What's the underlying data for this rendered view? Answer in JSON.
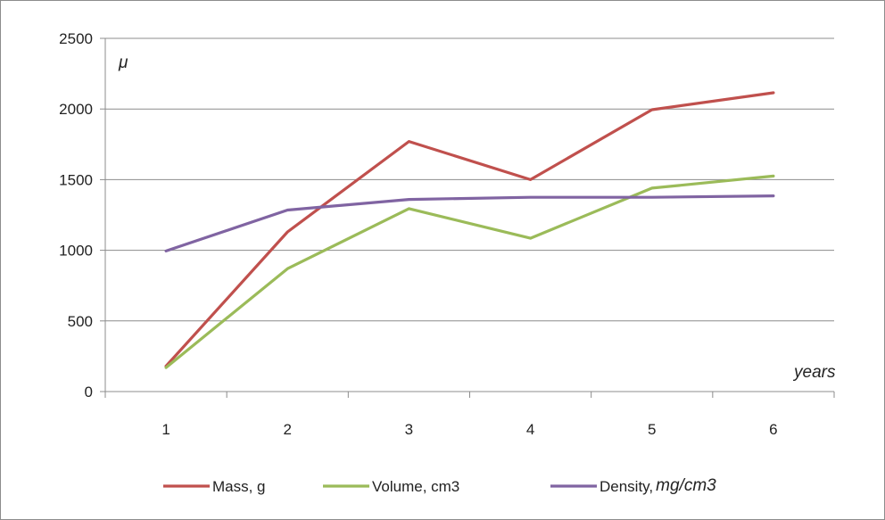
{
  "chart_data": {
    "type": "line",
    "title": "",
    "xlabel": "years",
    "ylabel": "μ",
    "x": [
      1,
      2,
      3,
      4,
      5,
      6
    ],
    "ylim": [
      0,
      2500
    ],
    "yticks": [
      0,
      500,
      1000,
      1500,
      2000,
      2500
    ],
    "grid": true,
    "legend_position": "bottom",
    "series": [
      {
        "name": "Mass, g",
        "color": "#c0504d",
        "values": [
          180,
          1130,
          1770,
          1500,
          1995,
          2115
        ]
      },
      {
        "name": "Volume, cm3",
        "color": "#9bbb59",
        "values": [
          170,
          870,
          1295,
          1085,
          1440,
          1525
        ]
      },
      {
        "name": "Density,",
        "unit": "mg/cm3",
        "color": "#8064a2",
        "values": [
          995,
          1285,
          1360,
          1375,
          1375,
          1385
        ]
      }
    ]
  }
}
